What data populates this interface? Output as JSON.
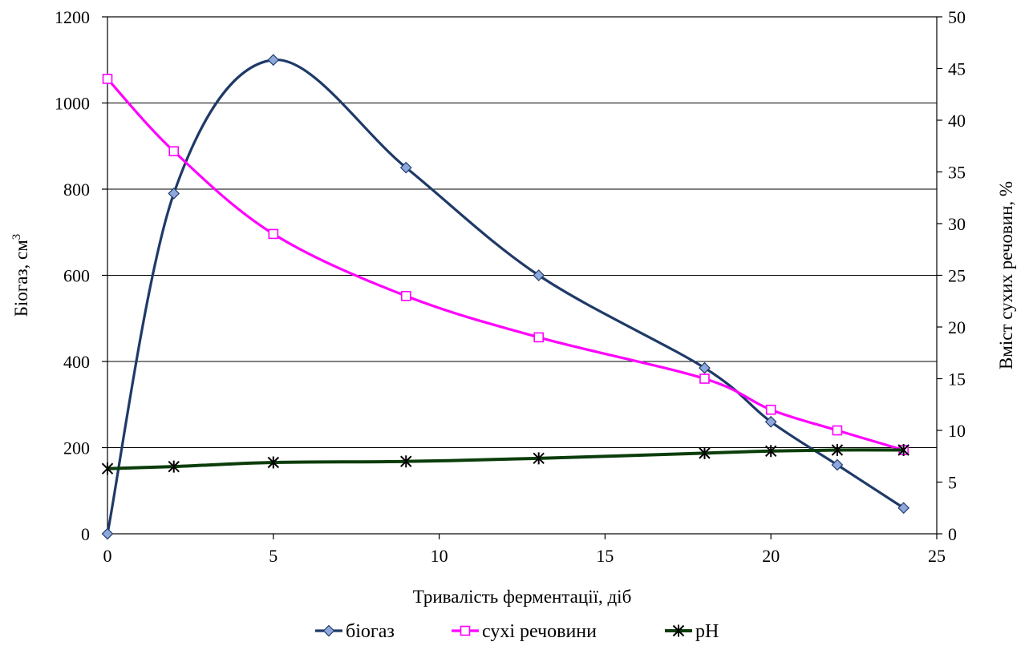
{
  "chart_data": {
    "type": "line",
    "xlabel": "Тривалість  ферментації,  діб",
    "ylabel": "Біогаз, см",
    "ylabel_sup": "3",
    "y2label": "Вміст  сухих  речовин, %",
    "xlim": [
      0,
      25
    ],
    "ylim": [
      0,
      1200
    ],
    "y2lim": [
      0,
      50
    ],
    "x_ticks": [
      0,
      5,
      10,
      15,
      20,
      25
    ],
    "y_ticks": [
      0,
      200,
      400,
      600,
      800,
      1000,
      1200
    ],
    "y2_ticks": [
      0,
      5,
      10,
      15,
      20,
      25,
      30,
      35,
      40,
      45,
      50
    ],
    "grid": "horizontal",
    "legend_position": "bottom",
    "series": [
      {
        "name": "біогаз",
        "axis": "left",
        "color": "#1f3a68",
        "marker": "diamond",
        "marker_fill": "#8ea8dc",
        "smooth": true,
        "x": [
          0,
          2,
          5,
          9,
          13,
          18,
          20,
          22,
          24
        ],
        "y": [
          0,
          790,
          1100,
          850,
          600,
          385,
          260,
          160,
          60
        ]
      },
      {
        "name": "сухі речовини",
        "axis": "right",
        "color": "#ff00ff",
        "marker": "square",
        "marker_fill": "#ffffff",
        "smooth": true,
        "x": [
          0,
          2,
          5,
          9,
          13,
          18,
          20,
          22,
          24
        ],
        "y": [
          44,
          37,
          29,
          23,
          19,
          15,
          12,
          10,
          8.1
        ]
      },
      {
        "name": "pH",
        "axis": "right",
        "color": "#0b3d0b",
        "marker": "star",
        "marker_fill": "#000000",
        "smooth": true,
        "x": [
          0,
          2,
          5,
          9,
          13,
          18,
          20,
          22,
          24
        ],
        "y": [
          6.3,
          6.5,
          6.9,
          7.0,
          7.3,
          7.8,
          8.0,
          8.1,
          8.1
        ]
      }
    ]
  }
}
